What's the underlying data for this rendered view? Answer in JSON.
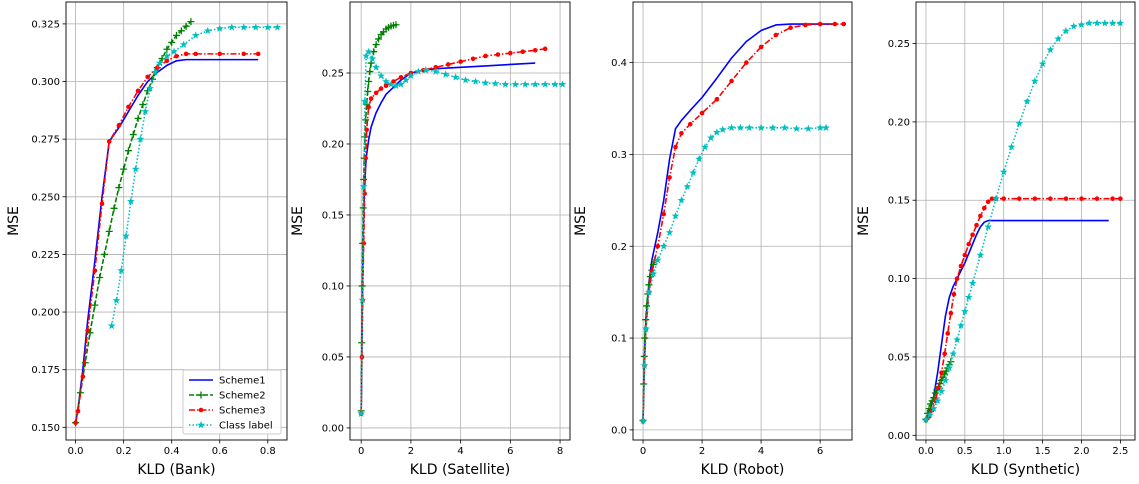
{
  "colors": {
    "Scheme1": "#0000ff",
    "Scheme2": "#008000",
    "Scheme3": "#ff0000",
    "Class label": "#00bfbf"
  },
  "legend": {
    "placement": "lower-right",
    "panel": 0,
    "entries": [
      "Scheme1",
      "Scheme2",
      "Scheme3",
      "Class label"
    ]
  },
  "chart_data": [
    {
      "type": "line",
      "xlabel": "KLD (Bank)",
      "ylabel": "MSE",
      "grid": true,
      "xlim": [
        -0.04,
        0.88
      ],
      "ylim": [
        0.1445,
        0.3345
      ],
      "xticks": [
        0.0,
        0.2,
        0.4,
        0.6,
        0.8
      ],
      "xtick_labels": [
        "0.0",
        "0.2",
        "0.4",
        "0.6",
        "0.8"
      ],
      "yticks": [
        0.15,
        0.175,
        0.2,
        0.225,
        0.25,
        0.275,
        0.3,
        0.325
      ],
      "ytick_labels": [
        "0.150",
        "0.175",
        "0.200",
        "0.225",
        "0.250",
        "0.275",
        "0.300",
        "0.325"
      ],
      "series": [
        {
          "name": "Scheme1",
          "style": "solid",
          "marker": "none",
          "x": [
            0.0,
            0.01,
            0.03,
            0.05,
            0.08,
            0.11,
            0.14,
            0.18,
            0.22,
            0.26,
            0.3,
            0.34,
            0.38,
            0.42,
            0.46,
            0.5,
            0.6,
            0.7,
            0.76
          ],
          "y": [
            0.152,
            0.158,
            0.175,
            0.196,
            0.222,
            0.25,
            0.274,
            0.28,
            0.287,
            0.294,
            0.3,
            0.304,
            0.307,
            0.309,
            0.3095,
            0.3095,
            0.3095,
            0.3095,
            0.3095
          ]
        },
        {
          "name": "Scheme2",
          "style": "dashed",
          "marker": "plus",
          "x": [
            0.0,
            0.02,
            0.04,
            0.06,
            0.08,
            0.1,
            0.12,
            0.14,
            0.16,
            0.18,
            0.2,
            0.22,
            0.24,
            0.26,
            0.28,
            0.3,
            0.32,
            0.34,
            0.36,
            0.38,
            0.4,
            0.42,
            0.44,
            0.46,
            0.48
          ],
          "y": [
            0.152,
            0.165,
            0.178,
            0.191,
            0.203,
            0.215,
            0.225,
            0.235,
            0.245,
            0.254,
            0.262,
            0.27,
            0.277,
            0.284,
            0.29,
            0.296,
            0.301,
            0.306,
            0.31,
            0.314,
            0.317,
            0.32,
            0.322,
            0.324,
            0.326
          ]
        },
        {
          "name": "Scheme3",
          "style": "dashdot",
          "marker": "dot",
          "x": [
            0.0,
            0.01,
            0.03,
            0.05,
            0.08,
            0.11,
            0.14,
            0.18,
            0.22,
            0.26,
            0.3,
            0.34,
            0.38,
            0.42,
            0.46,
            0.5,
            0.6,
            0.7,
            0.76
          ],
          "y": [
            0.152,
            0.157,
            0.172,
            0.192,
            0.218,
            0.247,
            0.274,
            0.281,
            0.289,
            0.296,
            0.302,
            0.306,
            0.309,
            0.311,
            0.312,
            0.312,
            0.312,
            0.312,
            0.312
          ]
        },
        {
          "name": "Class label",
          "style": "dotted",
          "marker": "star",
          "x": [
            0.15,
            0.17,
            0.19,
            0.21,
            0.23,
            0.25,
            0.27,
            0.29,
            0.31,
            0.33,
            0.35,
            0.38,
            0.41,
            0.45,
            0.5,
            0.55,
            0.6,
            0.65,
            0.7,
            0.75,
            0.8,
            0.84
          ],
          "y": [
            0.194,
            0.205,
            0.218,
            0.233,
            0.248,
            0.262,
            0.275,
            0.287,
            0.297,
            0.304,
            0.308,
            0.311,
            0.313,
            0.316,
            0.32,
            0.322,
            0.323,
            0.3235,
            0.3235,
            0.3235,
            0.3235,
            0.3235
          ]
        }
      ]
    },
    {
      "type": "line",
      "xlabel": "KLD (Satellite)",
      "ylabel": "MSE",
      "grid": true,
      "xlim": [
        -0.45,
        8.4
      ],
      "ylim": [
        -0.0085,
        0.3
      ],
      "xticks": [
        0,
        2,
        4,
        6,
        8
      ],
      "xtick_labels": [
        "0",
        "2",
        "4",
        "6",
        "8"
      ],
      "yticks": [
        0.0,
        0.05,
        0.1,
        0.15,
        0.2,
        0.25
      ],
      "ytick_labels": [
        "0.00",
        "0.05",
        "0.10",
        "0.15",
        "0.20",
        "0.25"
      ],
      "series": [
        {
          "name": "Scheme1",
          "style": "solid",
          "marker": "none",
          "x": [
            0.0,
            0.03,
            0.06,
            0.1,
            0.15,
            0.2,
            0.3,
            0.4,
            0.6,
            0.8,
            1.0,
            1.3,
            1.6,
            2.0,
            2.5,
            3.0,
            4.0,
            5.0,
            6.0,
            7.0
          ],
          "y": [
            0.01,
            0.06,
            0.11,
            0.15,
            0.175,
            0.19,
            0.203,
            0.212,
            0.222,
            0.229,
            0.235,
            0.24,
            0.245,
            0.25,
            0.252,
            0.253,
            0.254,
            0.255,
            0.256,
            0.257
          ]
        },
        {
          "name": "Scheme2",
          "style": "dashed",
          "marker": "plus",
          "x": [
            0.0,
            0.02,
            0.04,
            0.06,
            0.08,
            0.1,
            0.12,
            0.15,
            0.18,
            0.22,
            0.26,
            0.3,
            0.35,
            0.4,
            0.5,
            0.6,
            0.7,
            0.8,
            0.9,
            1.0,
            1.1,
            1.2,
            1.3,
            1.4
          ],
          "y": [
            0.012,
            0.06,
            0.1,
            0.13,
            0.155,
            0.175,
            0.19,
            0.205,
            0.217,
            0.228,
            0.237,
            0.244,
            0.251,
            0.257,
            0.265,
            0.27,
            0.274,
            0.277,
            0.279,
            0.281,
            0.282,
            0.283,
            0.2835,
            0.284
          ]
        },
        {
          "name": "Scheme3",
          "style": "dashdot",
          "marker": "dot",
          "x": [
            0.0,
            0.03,
            0.06,
            0.1,
            0.14,
            0.18,
            0.22,
            0.3,
            0.4,
            0.6,
            0.8,
            1.0,
            1.3,
            1.6,
            2.0,
            2.5,
            3.0,
            3.5,
            4.0,
            4.5,
            5.0,
            5.5,
            6.0,
            6.5,
            7.0,
            7.4
          ],
          "y": [
            0.01,
            0.05,
            0.09,
            0.13,
            0.165,
            0.19,
            0.21,
            0.226,
            0.232,
            0.236,
            0.239,
            0.241,
            0.244,
            0.247,
            0.25,
            0.252,
            0.254,
            0.256,
            0.258,
            0.26,
            0.262,
            0.263,
            0.264,
            0.265,
            0.266,
            0.267
          ]
        },
        {
          "name": "Class label",
          "style": "dotted",
          "marker": "star",
          "x": [
            0.0,
            0.05,
            0.1,
            0.15,
            0.2,
            0.3,
            0.45,
            0.6,
            0.8,
            1.0,
            1.2,
            1.4,
            1.6,
            1.8,
            2.0,
            2.3,
            2.6,
            3.0,
            3.4,
            3.8,
            4.2,
            4.6,
            5.0,
            5.4,
            5.8,
            6.2,
            6.6,
            7.0,
            7.4,
            7.8,
            8.1
          ],
          "y": [
            0.01,
            0.09,
            0.17,
            0.23,
            0.262,
            0.265,
            0.26,
            0.254,
            0.248,
            0.244,
            0.242,
            0.241,
            0.242,
            0.245,
            0.248,
            0.251,
            0.252,
            0.251,
            0.249,
            0.247,
            0.245,
            0.244,
            0.243,
            0.2425,
            0.242,
            0.242,
            0.242,
            0.242,
            0.242,
            0.242,
            0.242
          ]
        }
      ]
    },
    {
      "type": "line",
      "xlabel": "KLD (Robot)",
      "ylabel": "MSE",
      "grid": true,
      "xlim": [
        -0.34,
        7.08
      ],
      "ylim": [
        -0.011,
        0.466
      ],
      "xticks": [
        0,
        2,
        4,
        6
      ],
      "xtick_labels": [
        "0",
        "2",
        "4",
        "6"
      ],
      "yticks": [
        0.0,
        0.1,
        0.2,
        0.3,
        0.4
      ],
      "ytick_labels": [
        "0.0",
        "0.1",
        "0.2",
        "0.3",
        "0.4"
      ],
      "series": [
        {
          "name": "Scheme1",
          "style": "solid",
          "marker": "none",
          "x": [
            0.0,
            0.05,
            0.1,
            0.2,
            0.3,
            0.5,
            0.7,
            0.9,
            1.1,
            1.3,
            1.6,
            2.0,
            2.5,
            3.0,
            3.5,
            4.0,
            4.5,
            5.0,
            5.5,
            6.0,
            6.5
          ],
          "y": [
            0.01,
            0.08,
            0.12,
            0.16,
            0.185,
            0.215,
            0.25,
            0.295,
            0.328,
            0.337,
            0.348,
            0.362,
            0.383,
            0.405,
            0.423,
            0.435,
            0.441,
            0.442,
            0.442,
            0.442,
            0.442
          ]
        },
        {
          "name": "Scheme2",
          "style": "dashed",
          "marker": "plus",
          "x": [
            0.0,
            0.02,
            0.04,
            0.06,
            0.09,
            0.12,
            0.16,
            0.2,
            0.25,
            0.3,
            0.35,
            0.4
          ],
          "y": [
            0.01,
            0.05,
            0.08,
            0.1,
            0.12,
            0.135,
            0.148,
            0.158,
            0.167,
            0.174,
            0.18,
            0.185
          ]
        },
        {
          "name": "Scheme3",
          "style": "dashdot",
          "marker": "dot",
          "x": [
            0.0,
            0.05,
            0.1,
            0.2,
            0.3,
            0.5,
            0.7,
            0.9,
            1.1,
            1.3,
            1.6,
            2.0,
            2.5,
            3.0,
            3.5,
            4.0,
            4.5,
            5.0,
            5.5,
            6.0,
            6.5,
            6.8
          ],
          "y": [
            0.01,
            0.07,
            0.11,
            0.15,
            0.172,
            0.2,
            0.235,
            0.275,
            0.308,
            0.323,
            0.333,
            0.345,
            0.36,
            0.38,
            0.4,
            0.417,
            0.43,
            0.438,
            0.441,
            0.442,
            0.442,
            0.442
          ]
        },
        {
          "name": "Class label",
          "style": "dotted",
          "marker": "star",
          "x": [
            0.0,
            0.05,
            0.1,
            0.2,
            0.35,
            0.5,
            0.7,
            0.9,
            1.1,
            1.3,
            1.5,
            1.7,
            1.9,
            2.1,
            2.3,
            2.5,
            2.7,
            3.0,
            3.3,
            3.6,
            4.0,
            4.4,
            4.8,
            5.2,
            5.6,
            6.0,
            6.2
          ],
          "y": [
            0.01,
            0.07,
            0.11,
            0.15,
            0.17,
            0.185,
            0.2,
            0.215,
            0.233,
            0.25,
            0.265,
            0.28,
            0.295,
            0.308,
            0.318,
            0.324,
            0.327,
            0.329,
            0.329,
            0.329,
            0.329,
            0.329,
            0.329,
            0.328,
            0.328,
            0.329,
            0.329
          ]
        }
      ]
    },
    {
      "type": "line",
      "xlabel": "KLD (Synthetic)",
      "ylabel": "MSE",
      "grid": true,
      "xlim": [
        -0.128,
        2.688
      ],
      "ylim": [
        -0.003,
        0.2765
      ],
      "xticks": [
        0.0,
        0.5,
        1.0,
        1.5,
        2.0,
        2.5
      ],
      "xtick_labels": [
        "0.0",
        "0.5",
        "1.0",
        "1.5",
        "2.0",
        "2.5"
      ],
      "yticks": [
        0.0,
        0.05,
        0.1,
        0.15,
        0.2,
        0.25
      ],
      "ytick_labels": [
        "0.00",
        "0.05",
        "0.10",
        "0.15",
        "0.20",
        "0.25"
      ],
      "series": [
        {
          "name": "Scheme1",
          "style": "solid",
          "marker": "none",
          "x": [
            0.0,
            0.05,
            0.1,
            0.15,
            0.2,
            0.25,
            0.3,
            0.35,
            0.4,
            0.45,
            0.5,
            0.55,
            0.6,
            0.65,
            0.7,
            0.75,
            0.8,
            0.9,
            1.0,
            1.5,
            2.0,
            2.35
          ],
          "y": [
            0.01,
            0.015,
            0.025,
            0.04,
            0.058,
            0.076,
            0.088,
            0.095,
            0.1,
            0.105,
            0.11,
            0.116,
            0.122,
            0.128,
            0.133,
            0.136,
            0.137,
            0.137,
            0.137,
            0.137,
            0.137,
            0.137
          ]
        },
        {
          "name": "Scheme2",
          "style": "dashed",
          "marker": "plus",
          "x": [
            0.0,
            0.02,
            0.04,
            0.06,
            0.08,
            0.1,
            0.12,
            0.14,
            0.16,
            0.18,
            0.2,
            0.22,
            0.24,
            0.26,
            0.28,
            0.3,
            0.32
          ],
          "y": [
            0.01,
            0.014,
            0.017,
            0.02,
            0.022,
            0.024,
            0.027,
            0.029,
            0.031,
            0.033,
            0.035,
            0.037,
            0.039,
            0.041,
            0.043,
            0.045,
            0.047
          ]
        },
        {
          "name": "Scheme3",
          "style": "dashdot",
          "marker": "dot",
          "x": [
            0.0,
            0.04,
            0.08,
            0.12,
            0.16,
            0.2,
            0.24,
            0.28,
            0.32,
            0.36,
            0.4,
            0.45,
            0.5,
            0.55,
            0.6,
            0.65,
            0.7,
            0.75,
            0.8,
            0.85,
            0.9,
            1.0,
            1.2,
            1.4,
            1.6,
            1.8,
            2.0,
            2.2,
            2.4,
            2.5
          ],
          "y": [
            0.01,
            0.012,
            0.016,
            0.022,
            0.03,
            0.04,
            0.052,
            0.065,
            0.078,
            0.09,
            0.1,
            0.108,
            0.115,
            0.122,
            0.128,
            0.134,
            0.14,
            0.145,
            0.149,
            0.151,
            0.151,
            0.151,
            0.151,
            0.151,
            0.151,
            0.151,
            0.151,
            0.151,
            0.151,
            0.151
          ]
        },
        {
          "name": "Class label",
          "style": "dotted",
          "marker": "star",
          "x": [
            0.0,
            0.05,
            0.1,
            0.15,
            0.2,
            0.25,
            0.3,
            0.35,
            0.4,
            0.45,
            0.5,
            0.55,
            0.6,
            0.7,
            0.8,
            0.9,
            1.0,
            1.1,
            1.2,
            1.3,
            1.4,
            1.5,
            1.6,
            1.7,
            1.8,
            1.9,
            2.0,
            2.1,
            2.2,
            2.3,
            2.4,
            2.5
          ],
          "y": [
            0.01,
            0.013,
            0.017,
            0.022,
            0.028,
            0.035,
            0.043,
            0.052,
            0.061,
            0.07,
            0.079,
            0.088,
            0.097,
            0.115,
            0.133,
            0.151,
            0.168,
            0.184,
            0.199,
            0.213,
            0.226,
            0.237,
            0.246,
            0.253,
            0.258,
            0.261,
            0.262,
            0.263,
            0.263,
            0.263,
            0.263,
            0.263
          ]
        }
      ]
    }
  ]
}
